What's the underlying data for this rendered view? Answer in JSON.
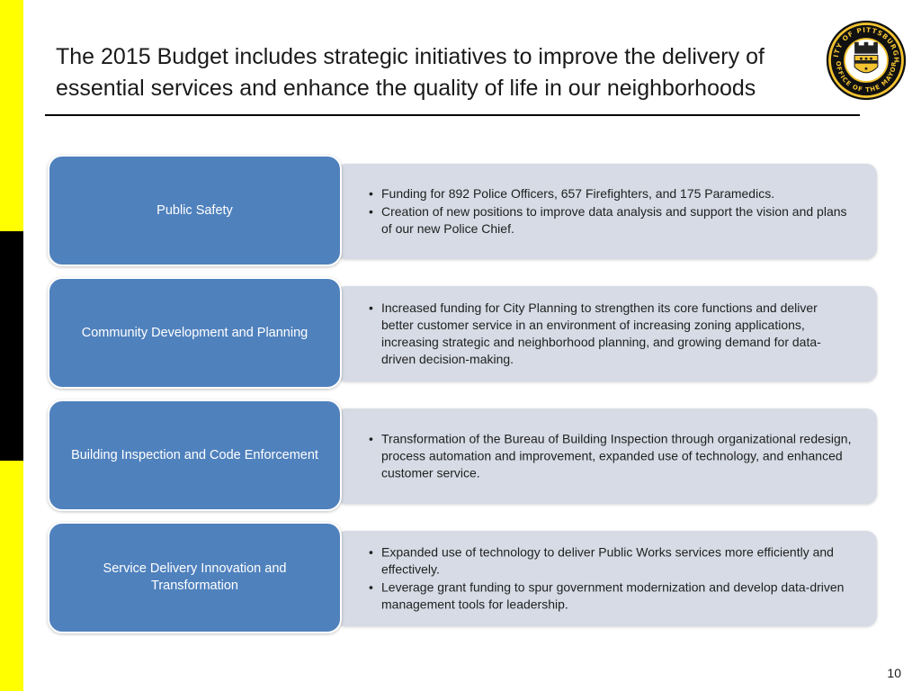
{
  "colors": {
    "side_yellow": "#ffff00",
    "side_black": "#000000",
    "label_fill": "#4f81bd",
    "panel_fill": "#d6dbe5",
    "seal_gold": "#f4c430"
  },
  "header": {
    "title": "The 2015 Budget includes strategic initiatives to improve the delivery of essential services and enhance the quality of life in our neighborhoods"
  },
  "seal": {
    "icon": "city-seal-icon",
    "top_text": "CITY OF PITTSBURGH",
    "bottom_text": "OFFICE OF THE MAYOR"
  },
  "initiatives": [
    {
      "label": "Public Safety",
      "bullets": [
        "Funding for 892 Police Officers, 657 Firefighters, and 175 Paramedics.",
        "Creation of new positions to improve data analysis and support the vision and plans of our new Police Chief."
      ]
    },
    {
      "label": "Community Development and Planning",
      "bullets": [
        "Increased funding for City Planning to strengthen its core functions and deliver better customer service in an environment of increasing zoning applications, increasing strategic and neighborhood planning, and growing demand for data-driven decision-making."
      ]
    },
    {
      "label": "Building Inspection and Code Enforcement",
      "bullets": [
        "Transformation of the Bureau of Building Inspection through organizational redesign, process automation and improvement, expanded use of technology, and enhanced customer service."
      ]
    },
    {
      "label": "Service Delivery Innovation and Transformation",
      "bullets": [
        "Expanded use of technology to deliver Public Works services more efficiently and effectively.",
        "Leverage grant funding to spur government modernization and develop data-driven management tools for leadership."
      ]
    }
  ],
  "footer": {
    "page_number": "10"
  }
}
